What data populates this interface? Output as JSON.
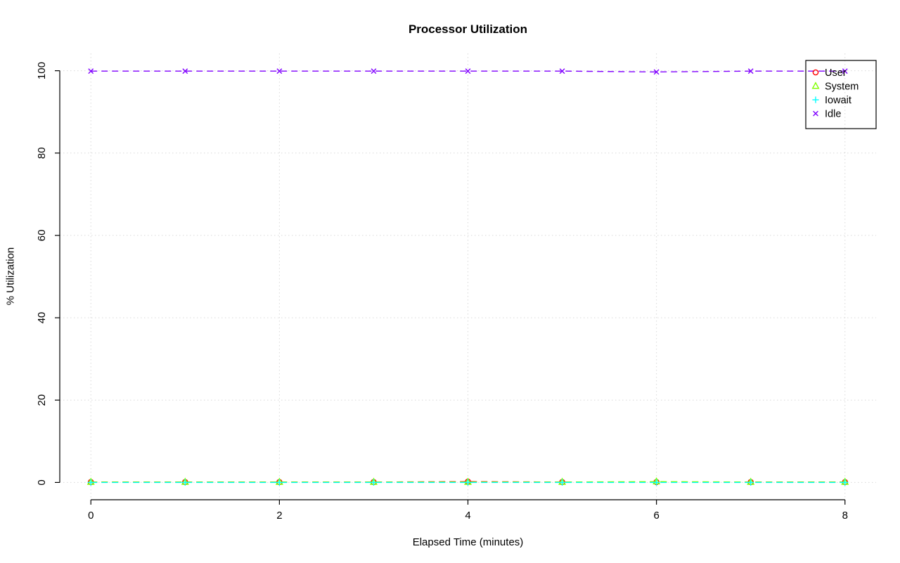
{
  "chart_data": {
    "type": "line",
    "title": "Processor Utilization",
    "xlabel": "Elapsed Time (minutes)",
    "ylabel": "% Utilization",
    "grid": true,
    "grid_color": "#d9d9d9",
    "axis_color": "#000000",
    "legend_position": "top-right",
    "xlim": [
      -0.33,
      8.33
    ],
    "ylim": [
      -4.2,
      104.2
    ],
    "xticks": [
      0,
      2,
      4,
      6,
      8
    ],
    "yticks": [
      0,
      20,
      40,
      60,
      80,
      100
    ],
    "x": [
      0,
      1,
      2,
      3,
      4,
      5,
      6,
      7,
      8
    ],
    "series": [
      {
        "name": "User",
        "color": "#ff0000",
        "marker": "circle",
        "line_style": "dashed",
        "values": [
          0.1,
          0.1,
          0.1,
          0.1,
          0.2,
          0.1,
          0.1,
          0.1,
          0.1
        ]
      },
      {
        "name": "System",
        "color": "#80ff00",
        "marker": "triangle",
        "line_style": "dashed",
        "values": [
          0.1,
          0.1,
          0.1,
          0.1,
          0.1,
          0.1,
          0.2,
          0.1,
          0.1
        ]
      },
      {
        "name": "Iowait",
        "color": "#00ffff",
        "marker": "plus",
        "line_style": "dashed",
        "values": [
          0.0,
          0.0,
          0.0,
          0.0,
          0.0,
          0.0,
          0.0,
          0.0,
          0.0
        ]
      },
      {
        "name": "Idle",
        "color": "#8000ff",
        "marker": "x",
        "line_style": "dashed",
        "values": [
          99.9,
          99.9,
          99.9,
          99.9,
          99.9,
          99.9,
          99.7,
          99.9,
          99.9
        ]
      }
    ]
  }
}
